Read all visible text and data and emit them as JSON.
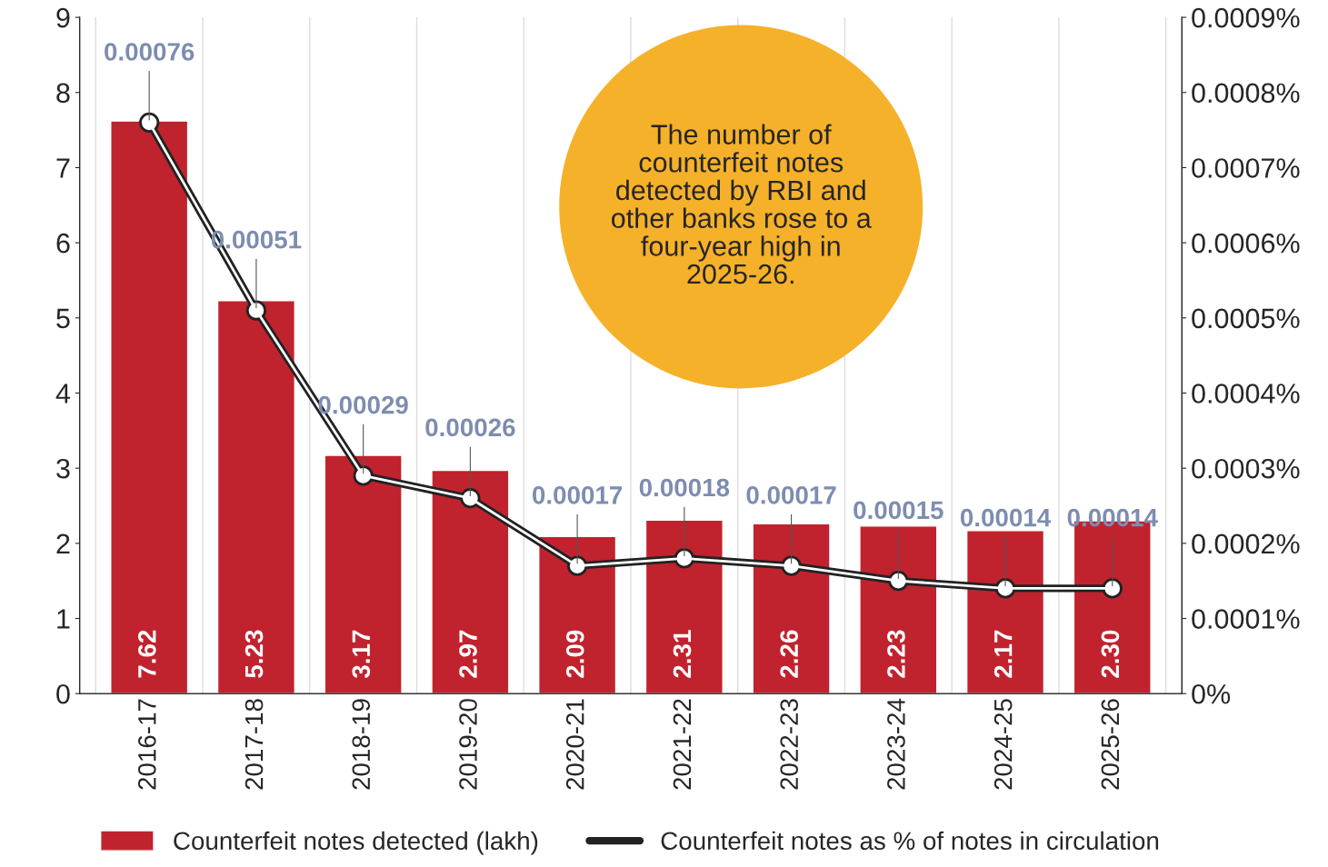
{
  "chart_data": {
    "type": "bar",
    "categories": [
      "2016-17",
      "2017-18",
      "2018-19",
      "2019-20",
      "2020-21",
      "2021-22",
      "2022-23",
      "2023-24",
      "2024-25",
      "2025-26"
    ],
    "series": [
      {
        "name": "Counterfeit notes detected (lakh)",
        "color": "#c0232e",
        "values": [
          7.62,
          5.23,
          3.17,
          2.97,
          2.09,
          2.31,
          2.26,
          2.23,
          2.17,
          2.3
        ],
        "value_labels": [
          "7.62",
          "5.23",
          "3.17",
          "2.97",
          "2.09",
          "2.31",
          "2.26",
          "2.23",
          "2.17",
          "2.30"
        ]
      },
      {
        "name": "Counterfeit notes as % of notes in circulation",
        "type": "line",
        "axis": "y2",
        "color": "#222222",
        "marker": "circle",
        "values": [
          0.00076,
          0.00051,
          0.00029,
          0.00026,
          0.00017,
          0.00018,
          0.00017,
          0.00015,
          0.00014,
          0.00014
        ],
        "data_labels": true
      }
    ],
    "ylim": [
      0,
      9
    ],
    "yticks": [
      0,
      1,
      2,
      3,
      4,
      5,
      6,
      7,
      8,
      9
    ],
    "y2lim": [
      0,
      0.0009
    ],
    "y2ticks": [
      {
        "value": 0,
        "label": "0%"
      },
      {
        "value": 0.0001,
        "label": "0.0001%"
      },
      {
        "value": 0.0002,
        "label": "0.0002%"
      },
      {
        "value": 0.0003,
        "label": "0.0003%"
      },
      {
        "value": 0.0004,
        "label": "0.0004%"
      },
      {
        "value": 0.0005,
        "label": "0.0005%"
      },
      {
        "value": 0.0006,
        "label": "0.0006%"
      },
      {
        "value": 0.0007,
        "label": "0.0007%"
      },
      {
        "value": 0.0008,
        "label": "0.0008%"
      },
      {
        "value": 0.0009,
        "label": "0.0009%"
      }
    ],
    "annotations": [
      "The number of counterfeit notes detected by RBI and other banks rose to a four-year high in 2025-26."
    ],
    "grid": "x",
    "legend": "bottom"
  }
}
